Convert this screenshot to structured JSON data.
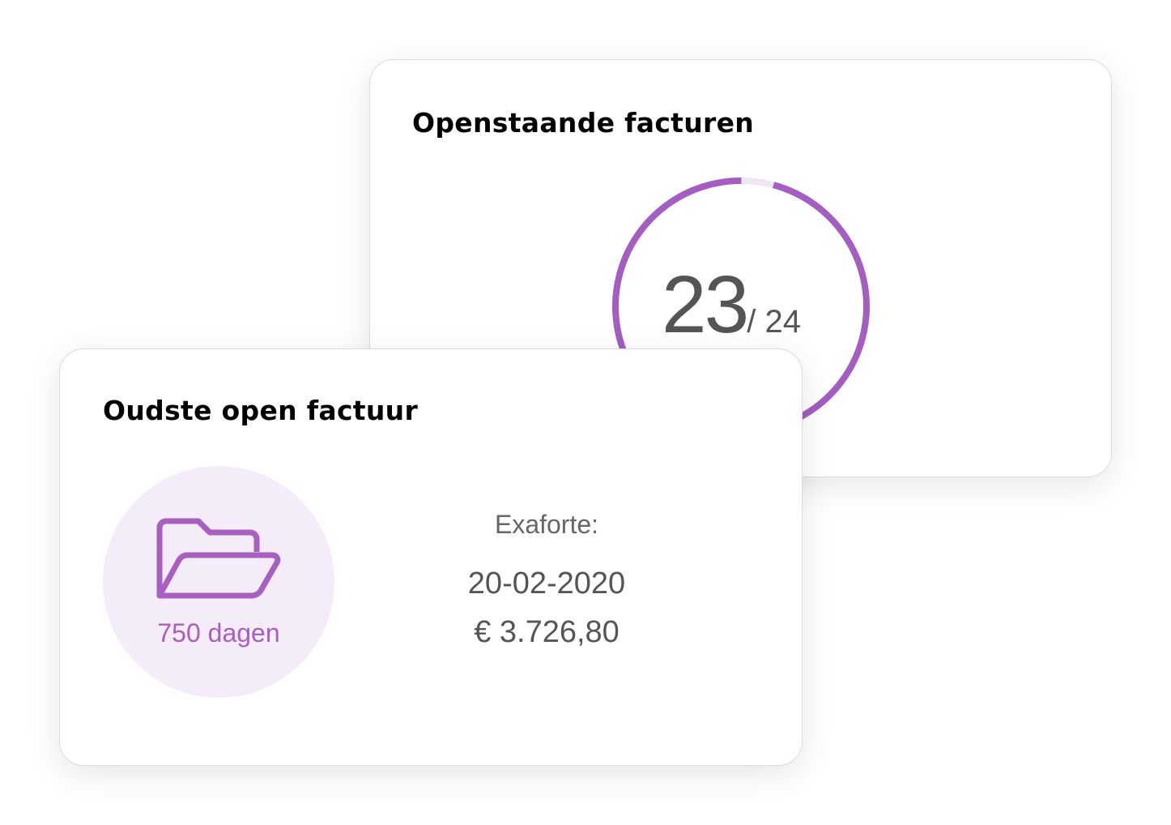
{
  "open_invoices": {
    "title": "Openstaande facturen",
    "count": "23",
    "total": "/ 24",
    "progress_fraction": 0.9583,
    "ring_color": "#a45dc0",
    "ring_track_color": "#efe6f4"
  },
  "oldest_invoice": {
    "title": "Oudste open factuur",
    "icon": "folder-open-icon",
    "days": "750 dagen",
    "client_label": "Exaforte:",
    "date": "20-02-2020",
    "amount": "€ 3.726,80"
  }
}
